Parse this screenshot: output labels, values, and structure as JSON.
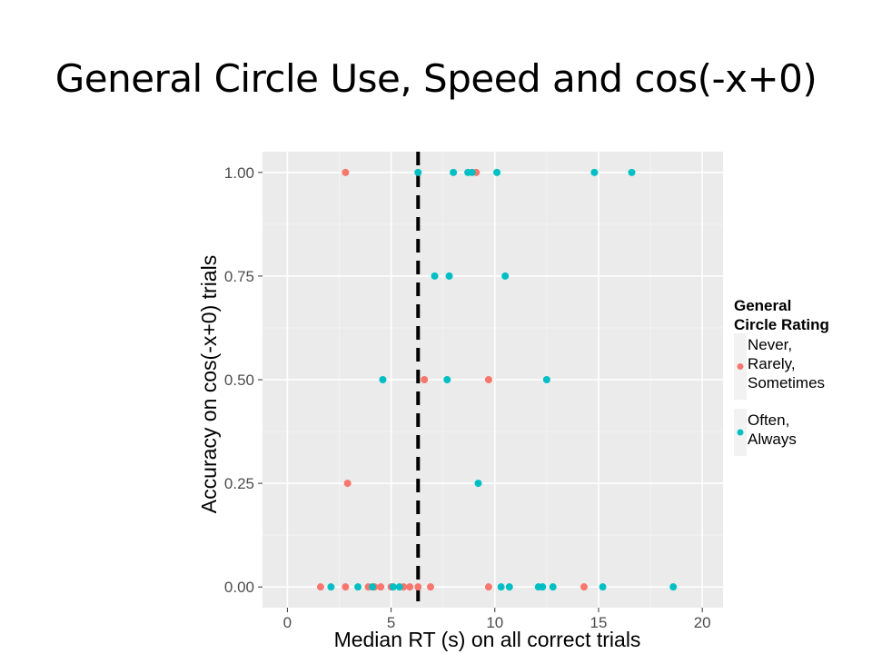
{
  "slide": {
    "title": "General Circle Use, Speed and cos(-x+0)"
  },
  "chart_data": {
    "type": "scatter",
    "xlabel": "Median RT (s) on all correct trials",
    "ylabel": "Accuracy on cos(-x+0) trials",
    "xlim": [
      -1.2,
      21
    ],
    "ylim": [
      -0.05,
      1.05
    ],
    "x_ticks": [
      0,
      5,
      10,
      15,
      20
    ],
    "x_tick_labels": [
      "0",
      "5",
      "10",
      "15",
      "20"
    ],
    "y_ticks": [
      0,
      0.25,
      0.5,
      0.75,
      1.0
    ],
    "y_tick_labels": [
      "0.00",
      "0.25",
      "0.50",
      "0.75",
      "1.00"
    ],
    "vline": {
      "x": 6.3,
      "style": "dashed"
    },
    "grid": true,
    "legend": {
      "title_lines": [
        "General",
        "Circle Rating"
      ],
      "placement": "right",
      "entries": [
        {
          "label_lines": [
            "Never,",
            "Rarely,",
            "Sometimes"
          ],
          "color": "#F8766D"
        },
        {
          "label_lines": [
            "Often,",
            "Always"
          ],
          "color": "#00BFC4"
        }
      ]
    },
    "series": [
      {
        "name": "Never, Rarely, Sometimes",
        "color": "#F8766D",
        "points": [
          [
            2.8,
            1.0
          ],
          [
            9.1,
            1.0
          ],
          [
            6.6,
            0.5
          ],
          [
            9.7,
            0.5
          ],
          [
            2.9,
            0.25
          ],
          [
            1.6,
            0.0
          ],
          [
            2.8,
            0.0
          ],
          [
            3.9,
            0.0
          ],
          [
            4.2,
            0.0
          ],
          [
            4.5,
            0.0
          ],
          [
            5.0,
            0.0
          ],
          [
            5.6,
            0.0
          ],
          [
            5.9,
            0.0
          ],
          [
            6.3,
            0.0
          ],
          [
            6.9,
            0.0
          ],
          [
            9.7,
            0.0
          ],
          [
            14.3,
            0.0
          ]
        ]
      },
      {
        "name": "Often, Always",
        "color": "#00BFC4",
        "points": [
          [
            6.3,
            1.0
          ],
          [
            8.0,
            1.0
          ],
          [
            8.7,
            1.0
          ],
          [
            8.9,
            1.0
          ],
          [
            10.1,
            1.0
          ],
          [
            14.8,
            1.0
          ],
          [
            16.6,
            1.0
          ],
          [
            7.1,
            0.75
          ],
          [
            7.8,
            0.75
          ],
          [
            10.5,
            0.75
          ],
          [
            4.6,
            0.5
          ],
          [
            7.7,
            0.5
          ],
          [
            12.5,
            0.5
          ],
          [
            9.2,
            0.25
          ],
          [
            2.1,
            0.0
          ],
          [
            3.4,
            0.0
          ],
          [
            4.1,
            0.0
          ],
          [
            5.1,
            0.0
          ],
          [
            5.4,
            0.0
          ],
          [
            10.3,
            0.0
          ],
          [
            10.7,
            0.0
          ],
          [
            12.1,
            0.0
          ],
          [
            12.3,
            0.0
          ],
          [
            12.8,
            0.0
          ],
          [
            15.2,
            0.0
          ],
          [
            18.6,
            0.0
          ]
        ]
      }
    ]
  }
}
